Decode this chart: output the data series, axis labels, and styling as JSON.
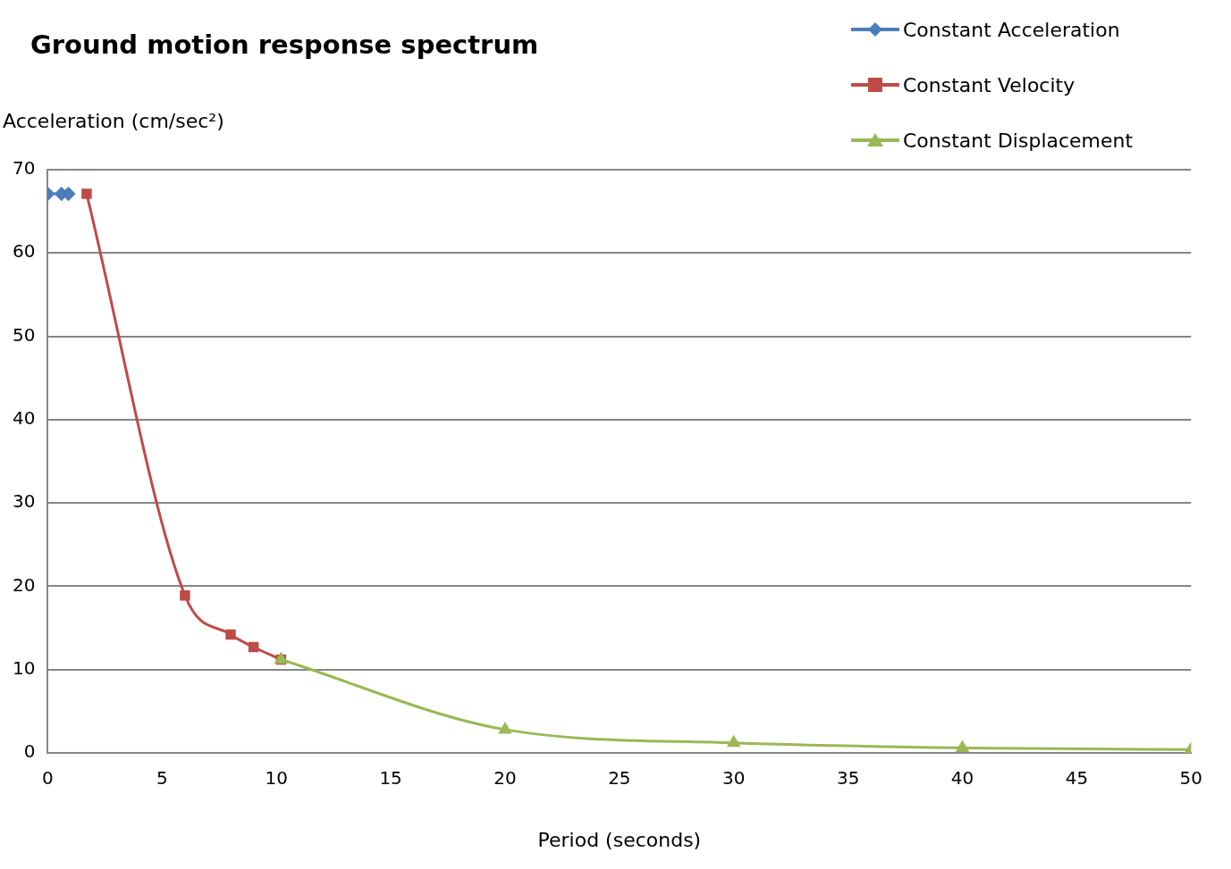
{
  "chart_data": {
    "type": "line",
    "title": "Ground motion response spectrum",
    "xlabel": "Period (seconds)",
    "ylabel": "Acceleration (cm/sec²)",
    "xlim": [
      0,
      50
    ],
    "xticks": [
      0,
      5,
      10,
      15,
      20,
      25,
      30,
      35,
      40,
      45,
      50
    ],
    "ylim": [
      0,
      70
    ],
    "yticks": [
      0,
      10,
      20,
      30,
      40,
      50,
      60,
      70
    ],
    "grid": "y",
    "legend": "top right",
    "series": [
      {
        "name": "Constant Acceleration",
        "color": "#4a7ebb",
        "marker": "diamond",
        "x": [
          0,
          0.6,
          0.9
        ],
        "values": [
          67.1,
          67.1,
          67.1
        ]
      },
      {
        "name": "Constant Velocity",
        "color": "#be4b48",
        "marker": "square",
        "x": [
          1.7,
          6,
          8,
          9,
          10.2
        ],
        "values": [
          67.1,
          18.9,
          14.2,
          12.7,
          11.2
        ]
      },
      {
        "name": "Constant Displacement",
        "color": "#98b954",
        "marker": "triangle",
        "x": [
          10.2,
          20,
          30,
          40,
          50
        ],
        "values": [
          11.2,
          2.8,
          1.2,
          0.6,
          0.4
        ]
      }
    ]
  }
}
